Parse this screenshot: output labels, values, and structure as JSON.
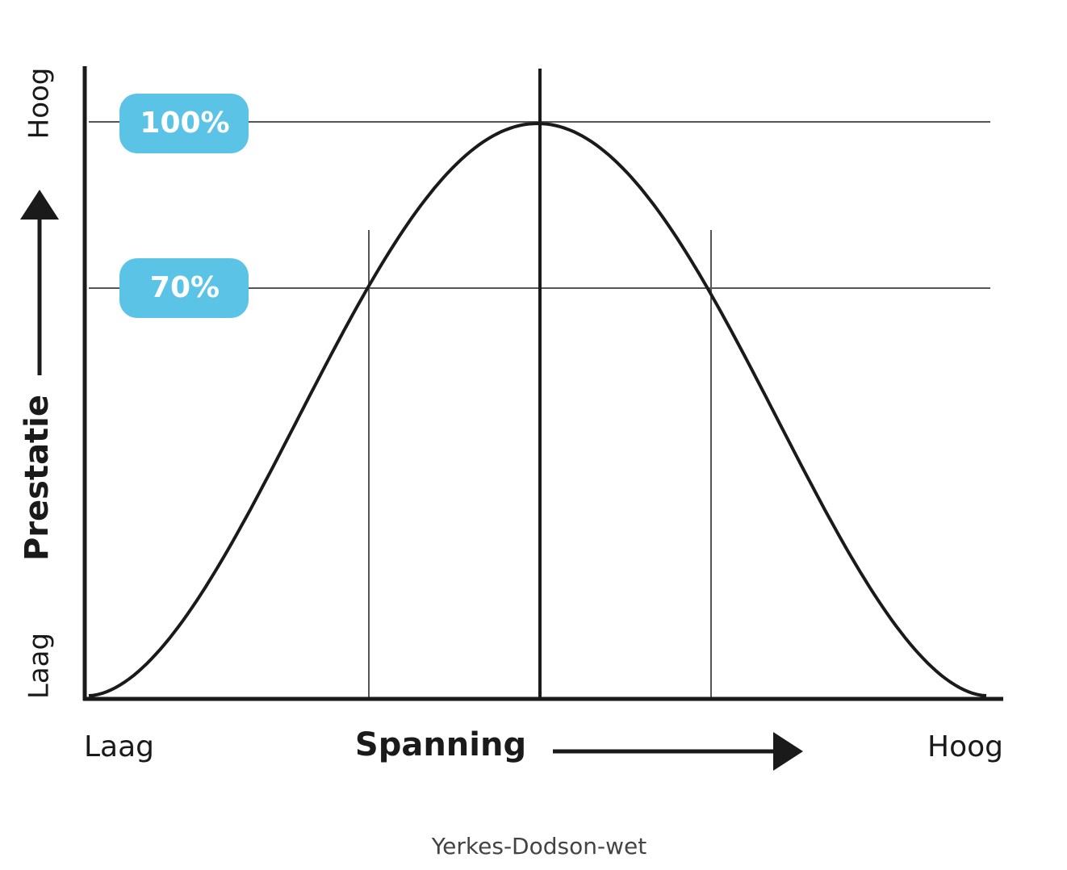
{
  "y_axis": {
    "top_label": "Hoog",
    "bottom_label": "Laag",
    "title": "Prestatie"
  },
  "x_axis": {
    "left_label": "Laag",
    "title": "Spanning",
    "right_label": "Hoog"
  },
  "levels": [
    "100%",
    "70%"
  ],
  "caption": "Yerkes-Dodson-wet"
}
